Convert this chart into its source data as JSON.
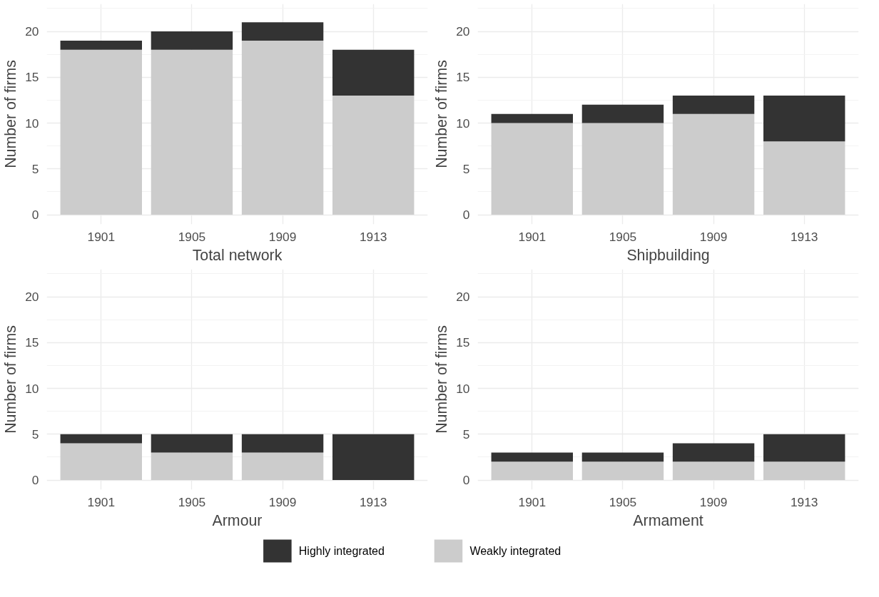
{
  "chart_data": [
    {
      "type": "bar",
      "stacked": true,
      "xlabel": "Total network",
      "ylabel": "Number of firms",
      "categories": [
        "1901",
        "1905",
        "1909",
        "1913"
      ],
      "ylim": [
        -1.05,
        23
      ],
      "yticks": [
        0,
        5,
        10,
        15,
        20
      ],
      "grid": true,
      "series": [
        {
          "color": "#cccccc",
          "values": [
            18,
            18,
            19,
            13
          ]
        },
        {
          "color": "#333333",
          "values": [
            1,
            2,
            2,
            5
          ]
        }
      ]
    },
    {
      "type": "bar",
      "stacked": true,
      "xlabel": "Shipbuilding",
      "ylabel": "Number of firms",
      "categories": [
        "1901",
        "1905",
        "1909",
        "1913"
      ],
      "ylim": [
        -1.05,
        23
      ],
      "yticks": [
        0,
        5,
        10,
        15,
        20
      ],
      "grid": true,
      "series": [
        {
          "color": "#cccccc",
          "values": [
            10,
            10,
            11,
            8
          ]
        },
        {
          "color": "#333333",
          "values": [
            1,
            2,
            2,
            5
          ]
        }
      ]
    },
    {
      "type": "bar",
      "stacked": true,
      "xlabel": "Armour",
      "ylabel": "Number of firms",
      "categories": [
        "1901",
        "1905",
        "1909",
        "1913"
      ],
      "ylim": [
        -1.05,
        23
      ],
      "yticks": [
        0,
        5,
        10,
        15,
        20
      ],
      "grid": true,
      "series": [
        {
          "color": "#cccccc",
          "values": [
            4,
            3,
            3,
            0
          ]
        },
        {
          "color": "#333333",
          "values": [
            1,
            2,
            2,
            5
          ]
        }
      ]
    },
    {
      "type": "bar",
      "stacked": true,
      "xlabel": "Armament",
      "ylabel": "Number of firms",
      "categories": [
        "1901",
        "1905",
        "1909",
        "1913"
      ],
      "ylim": [
        -1.05,
        23
      ],
      "yticks": [
        0,
        5,
        10,
        15,
        20
      ],
      "grid": true,
      "legend": "bottom",
      "series": [
        {
          "name": "Weakly integrated",
          "color": "#cccccc",
          "values": [
            2,
            2,
            2,
            2
          ]
        },
        {
          "name": "Highly integrated",
          "color": "#333333",
          "values": [
            1,
            1,
            2,
            3
          ]
        }
      ]
    }
  ]
}
